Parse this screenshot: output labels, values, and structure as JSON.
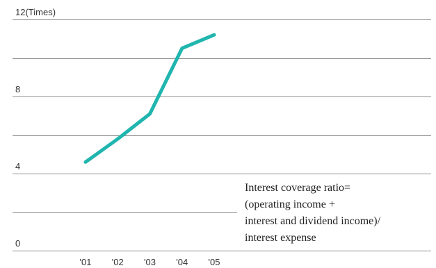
{
  "chart_data": {
    "type": "line",
    "title": "",
    "xlabel": "",
    "ylabel": "",
    "y_unit_label": "(Times)",
    "categories": [
      "'01",
      "'02",
      "'03",
      "'04",
      "'05"
    ],
    "series": [
      {
        "values": [
          4.6,
          5.8,
          7.1,
          10.5,
          11.2
        ],
        "color": "#20b5ae"
      }
    ],
    "ylim": [
      0,
      12
    ],
    "yticks": [
      0,
      4,
      8,
      12
    ],
    "grid_lines": [
      0,
      2,
      4,
      6,
      8,
      10,
      12
    ],
    "grid": true,
    "legend": "none",
    "annotation": {
      "lines": [
        "Interest coverage ratio=",
        "(operating income +",
        "interest and dividend income)/",
        "interest expense"
      ]
    }
  }
}
